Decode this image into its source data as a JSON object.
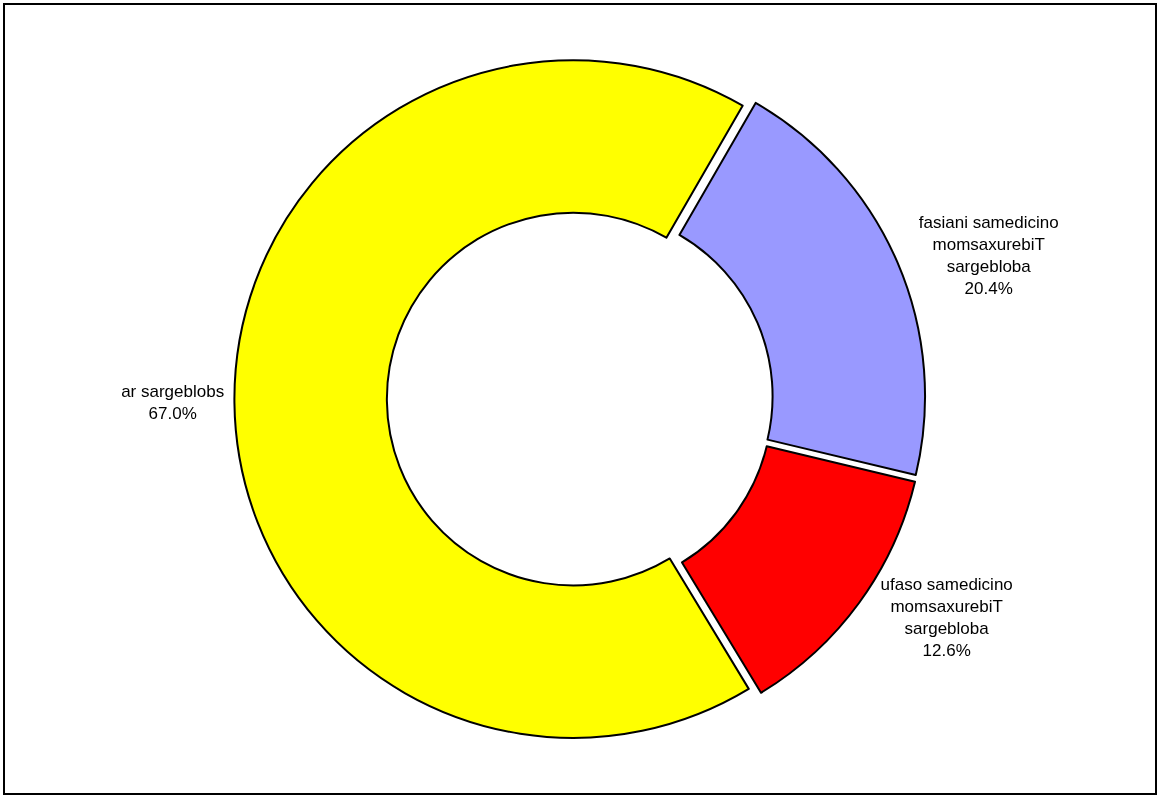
{
  "chart_data": {
    "type": "donut",
    "categories": [
      "fasiani samedicino\nmomsaxurebiT\nsargebloba",
      "ufaso samedicino\nmomsaxurebiT\nsargebloba",
      "ar sargeblobs"
    ],
    "values": [
      20.4,
      12.6,
      67.0
    ],
    "value_labels": [
      "20.4%",
      "12.6%",
      "67.0%"
    ],
    "colors": [
      "#9999ff",
      "#ff0000",
      "#ffff00"
    ]
  }
}
